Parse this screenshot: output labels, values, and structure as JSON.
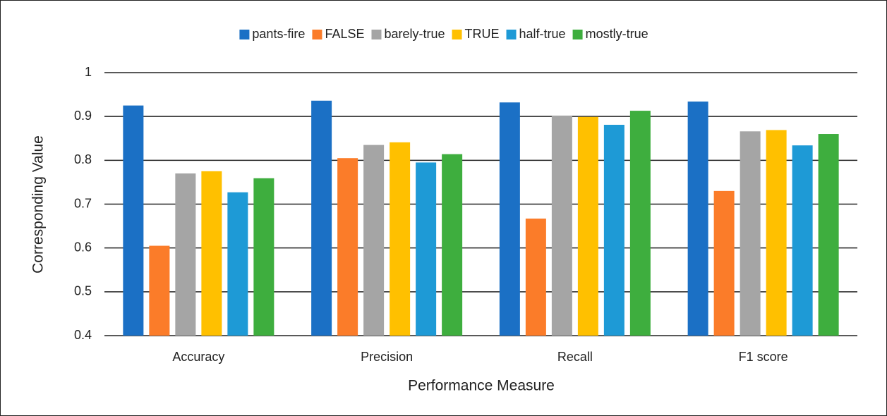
{
  "chart_data": {
    "type": "bar",
    "categories": [
      "Accuracy",
      "Precision",
      "Recall",
      "F1 score"
    ],
    "series": [
      {
        "name": "pants-fire",
        "color": "#1b70c5",
        "values": [
          0.925,
          0.936,
          0.932,
          0.934
        ]
      },
      {
        "name": "FALSE",
        "color": "#fb7c29",
        "values": [
          0.605,
          0.805,
          0.667,
          0.73
        ]
      },
      {
        "name": "barely-true",
        "color": "#a5a5a5",
        "values": [
          0.77,
          0.835,
          0.902,
          0.866
        ]
      },
      {
        "name": "TRUE",
        "color": "#ffc000",
        "values": [
          0.775,
          0.841,
          0.899,
          0.869
        ]
      },
      {
        "name": "half-true",
        "color": "#1e9ad6",
        "values": [
          0.727,
          0.795,
          0.881,
          0.834
        ]
      },
      {
        "name": "mostly-true",
        "color": "#3eae3e",
        "values": [
          0.759,
          0.814,
          0.913,
          0.86
        ]
      }
    ],
    "ylabel": "Corresponding Value",
    "xlabel": "Performance Measure",
    "ylim": [
      0.4,
      1
    ],
    "yticks": [
      0.4,
      0.5,
      0.6,
      0.7,
      0.8,
      0.9,
      1
    ],
    "grid": true,
    "legend": "top"
  }
}
